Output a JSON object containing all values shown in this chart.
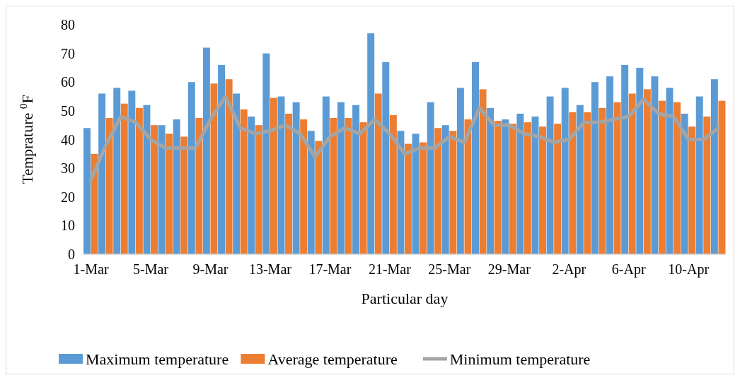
{
  "chart_data": {
    "type": "bar",
    "xlabel": "Particular day",
    "ylabel": "Temprature $^{0}$F",
    "categories": [
      "1-Mar",
      null,
      null,
      null,
      "5-Mar",
      null,
      null,
      null,
      "9-Mar",
      null,
      null,
      null,
      "13-Mar",
      null,
      null,
      null,
      "17-Mar",
      null,
      null,
      null,
      "21-Mar",
      null,
      null,
      null,
      "25-Mar",
      null,
      null,
      null,
      "29-Mar",
      null,
      null,
      null,
      "2-Apr",
      null,
      null,
      null,
      "6-Apr",
      null,
      null,
      null,
      "10-Apr",
      null,
      null
    ],
    "series": [
      {
        "name": "Maximum temperature",
        "color": "#5b9bd5",
        "values": [
          44,
          56,
          58,
          57,
          52,
          45,
          47,
          60,
          72,
          66,
          56,
          48,
          70,
          55,
          53,
          43,
          55,
          53,
          52,
          77,
          67,
          43,
          42,
          53,
          45,
          58,
          67,
          51,
          47,
          49,
          48,
          55,
          58,
          52,
          60,
          62,
          66,
          65,
          62,
          58,
          49,
          55,
          61
        ]
      },
      {
        "name": "Average temperature",
        "color": "#ed7d31",
        "values": [
          35,
          47.5,
          52.5,
          51,
          45,
          42,
          41,
          47.5,
          59.5,
          61,
          50.5,
          45,
          54.5,
          49,
          47,
          39.5,
          47.5,
          47.5,
          46,
          56,
          48.5,
          38.5,
          39,
          44,
          43,
          47,
          57.5,
          46.5,
          45.5,
          46,
          44.5,
          45.5,
          49.5,
          49.5,
          51,
          53,
          56,
          57.5,
          53.5,
          53,
          44.5,
          48,
          53.5
        ]
      },
      {
        "name": "Minimum temperature",
        "type": "line",
        "color": "#a5a5a5",
        "values": [
          26,
          38,
          48,
          46,
          40,
          37,
          37,
          37,
          47,
          55,
          44,
          42,
          43,
          45,
          42,
          34,
          41,
          44,
          42,
          47,
          42,
          35,
          37,
          37,
          41,
          39,
          51,
          45,
          45,
          42,
          41,
          39,
          40,
          46,
          46,
          47,
          48,
          54,
          49,
          48,
          40,
          40,
          44
        ]
      }
    ],
    "ylim": [
      0,
      80
    ],
    "yticks": [
      0,
      10,
      20,
      30,
      40,
      50,
      60,
      70,
      80
    ],
    "grid": false,
    "legend": "bottom",
    "marker": "none",
    "line_style": "solid"
  }
}
